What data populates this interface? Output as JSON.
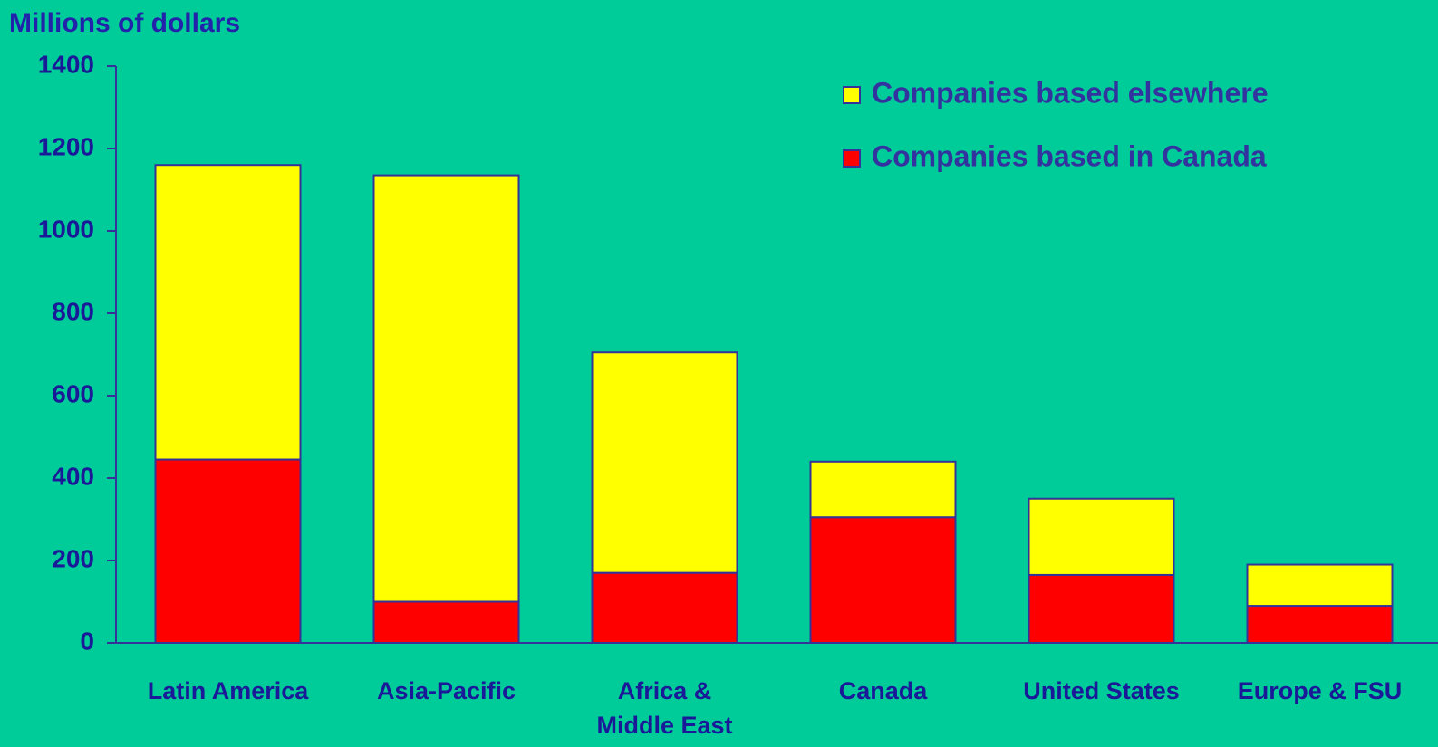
{
  "chart_data": {
    "type": "stacked-bar",
    "y_axis_label": "Millions of dollars",
    "categories": [
      "Latin America",
      "Asia-Pacific",
      "Africa &\nMiddle East",
      "Canada",
      "United States",
      "Europe &  FSU"
    ],
    "series": [
      {
        "name": "Companies based in Canada",
        "color": "#ff0000",
        "values": [
          445,
          100,
          170,
          305,
          165,
          90
        ]
      },
      {
        "name": "Companies based elsewhere",
        "color": "#ffff00",
        "values": [
          715,
          1035,
          535,
          135,
          185,
          100
        ]
      }
    ],
    "ylim": [
      0,
      1400
    ],
    "yticks": [
      0,
      200,
      400,
      600,
      800,
      1000,
      1200,
      1400
    ],
    "legend": "top-right"
  }
}
